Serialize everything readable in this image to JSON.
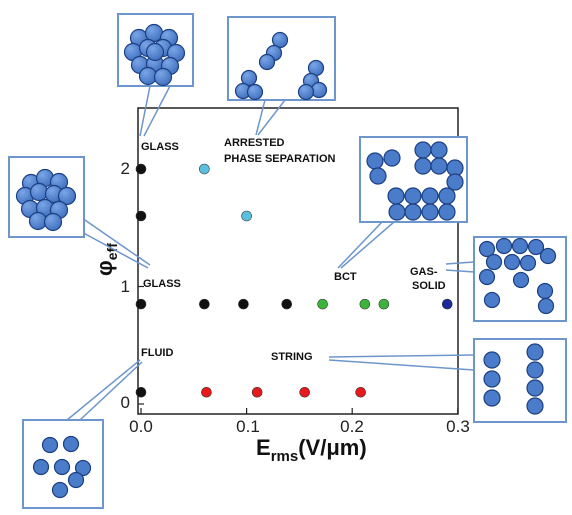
{
  "chart_data": {
    "type": "scatter",
    "x_axis": {
      "label_main": "E",
      "label_sub": "rms",
      "label_unit": "(V/μm)",
      "range": [
        0,
        0.3
      ],
      "ticks": [
        "0.0",
        "0.1",
        "0.2",
        "0.3"
      ],
      "tick_values": [
        0,
        0.1,
        0.2,
        0.3
      ]
    },
    "y_axis": {
      "label_main": "φ",
      "label_sub": "eff",
      "range": [
        0,
        2.5
      ],
      "ticks": [
        "0",
        "1",
        "2"
      ],
      "tick_values": [
        0,
        1,
        2
      ]
    },
    "colors": {
      "glass": "#111111",
      "arrested": "#5bc0de",
      "bct": "#3cb43c",
      "gas_solid": "#1a2a9a",
      "string": "#e41a1c",
      "sphere_fill": "#4a7cc9",
      "sphere_edge": "#1c3f82",
      "inset_border": "#6d96cc"
    },
    "points": [
      {
        "x": 0.0,
        "y": 0.1,
        "phase": "fluid"
      },
      {
        "x": 0.0,
        "y": 0.85,
        "phase": "glass"
      },
      {
        "x": 0.0,
        "y": 1.6,
        "phase": "glass"
      },
      {
        "x": 0.0,
        "y": 2.0,
        "phase": "glass"
      },
      {
        "x": 0.06,
        "y": 2.0,
        "phase": "arrested"
      },
      {
        "x": 0.1,
        "y": 1.6,
        "phase": "arrested"
      },
      {
        "x": 0.06,
        "y": 0.85,
        "phase": "glass"
      },
      {
        "x": 0.097,
        "y": 0.85,
        "phase": "glass"
      },
      {
        "x": 0.138,
        "y": 0.85,
        "phase": "glass"
      },
      {
        "x": 0.172,
        "y": 0.85,
        "phase": "bct"
      },
      {
        "x": 0.212,
        "y": 0.85,
        "phase": "bct"
      },
      {
        "x": 0.23,
        "y": 0.85,
        "phase": "bct"
      },
      {
        "x": 0.29,
        "y": 0.85,
        "phase": "gas_solid"
      },
      {
        "x": 0.062,
        "y": 0.1,
        "phase": "string"
      },
      {
        "x": 0.11,
        "y": 0.1,
        "phase": "string"
      },
      {
        "x": 0.155,
        "y": 0.1,
        "phase": "string"
      },
      {
        "x": 0.208,
        "y": 0.1,
        "phase": "string"
      }
    ],
    "region_labels": {
      "glass_top": "GLASS",
      "arrested_1": "ARRESTED",
      "arrested_2": "PHASE SEPARATION",
      "glass_mid": "GLASS",
      "bct": "BCT",
      "gas_1": "GAS-",
      "gas_2": "SOLID",
      "fluid": "FLUID",
      "string": "STRING"
    },
    "insets": [
      "glass-cluster-top",
      "arrested-clusters",
      "glass-cluster-left",
      "bct-lattice",
      "gas-solid",
      "string-chains",
      "fluid"
    ],
    "grid": false,
    "legend": "none"
  }
}
